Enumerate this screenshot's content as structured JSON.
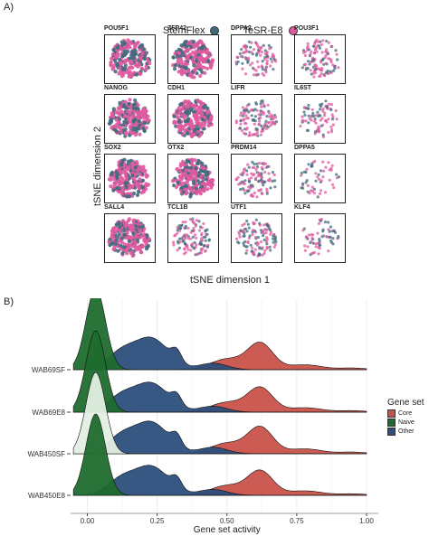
{
  "panel_a": {
    "letter": "A)",
    "legend": [
      {
        "label": "StemFlex",
        "color": "#3f6b7d"
      },
      {
        "label": "TeSR-E8",
        "color": "#e05aa0"
      }
    ],
    "xlabel": "tSNE dimension 1",
    "ylabel": "tSNE dimension 2",
    "genes": [
      [
        "POU5F1",
        "ZFP42",
        "DPPA2",
        "POU3F1"
      ],
      [
        "NANOG",
        "CDH1",
        "LIFR",
        "IL6ST"
      ],
      [
        "SOX2",
        "OTX2",
        "PRDM14",
        "DPPA5"
      ],
      [
        "SALL4",
        "TCL1B",
        "UTF1",
        "KLF4"
      ]
    ]
  },
  "panel_b": {
    "letter": "B)",
    "xlabel": "Gene set activity",
    "legend_title": "Gene set",
    "legend": [
      {
        "label": "Core",
        "color": "#c9524a"
      },
      {
        "label": "Naive",
        "color": "#1f6b2e"
      },
      {
        "label": "Other",
        "color": "#2c4f7c"
      }
    ],
    "x_ticks": [
      "0.00",
      "0.25",
      "0.50",
      "0.75",
      "1.00"
    ]
  },
  "chart_data": [
    {
      "type": "scatter",
      "title": "",
      "xlabel": "tSNE dimension 1",
      "ylabel": "tSNE dimension 2",
      "series": [
        {
          "name": "StemFlex",
          "color": "#3f6b7d"
        },
        {
          "name": "TeSR-E8",
          "color": "#e05aa0"
        }
      ],
      "facets": [
        "POU5F1",
        "ZFP42",
        "DPPA2",
        "POU3F1",
        "NANOG",
        "CDH1",
        "LIFR",
        "IL6ST",
        "SOX2",
        "OTX2",
        "PRDM14",
        "DPPA5",
        "SALL4",
        "TCL1B",
        "UTF1",
        "KLF4"
      ],
      "facet_density": [
        1.0,
        1.0,
        0.55,
        0.55,
        1.0,
        1.0,
        0.6,
        0.45,
        1.0,
        1.0,
        0.55,
        0.35,
        1.0,
        0.6,
        0.6,
        0.4
      ]
    },
    {
      "type": "area",
      "title": "",
      "xlabel": "Gene set activity",
      "xlim": [
        -0.05,
        1.0
      ],
      "categories": [
        "WAB69SF",
        "WAB69E8",
        "WAB450SF",
        "WAB450E8"
      ],
      "series": [
        {
          "name": "Naive",
          "color": "#1f6b2e",
          "peak_x": 0.03,
          "relative_height": 1.0
        },
        {
          "name": "Other",
          "color": "#2c4f7c",
          "peak_x": 0.23,
          "relative_height": 0.45,
          "secondary_peak_x": 0.32
        },
        {
          "name": "Core",
          "color": "#c9524a",
          "peak_x": 0.62,
          "relative_height": 0.35
        }
      ]
    }
  ]
}
